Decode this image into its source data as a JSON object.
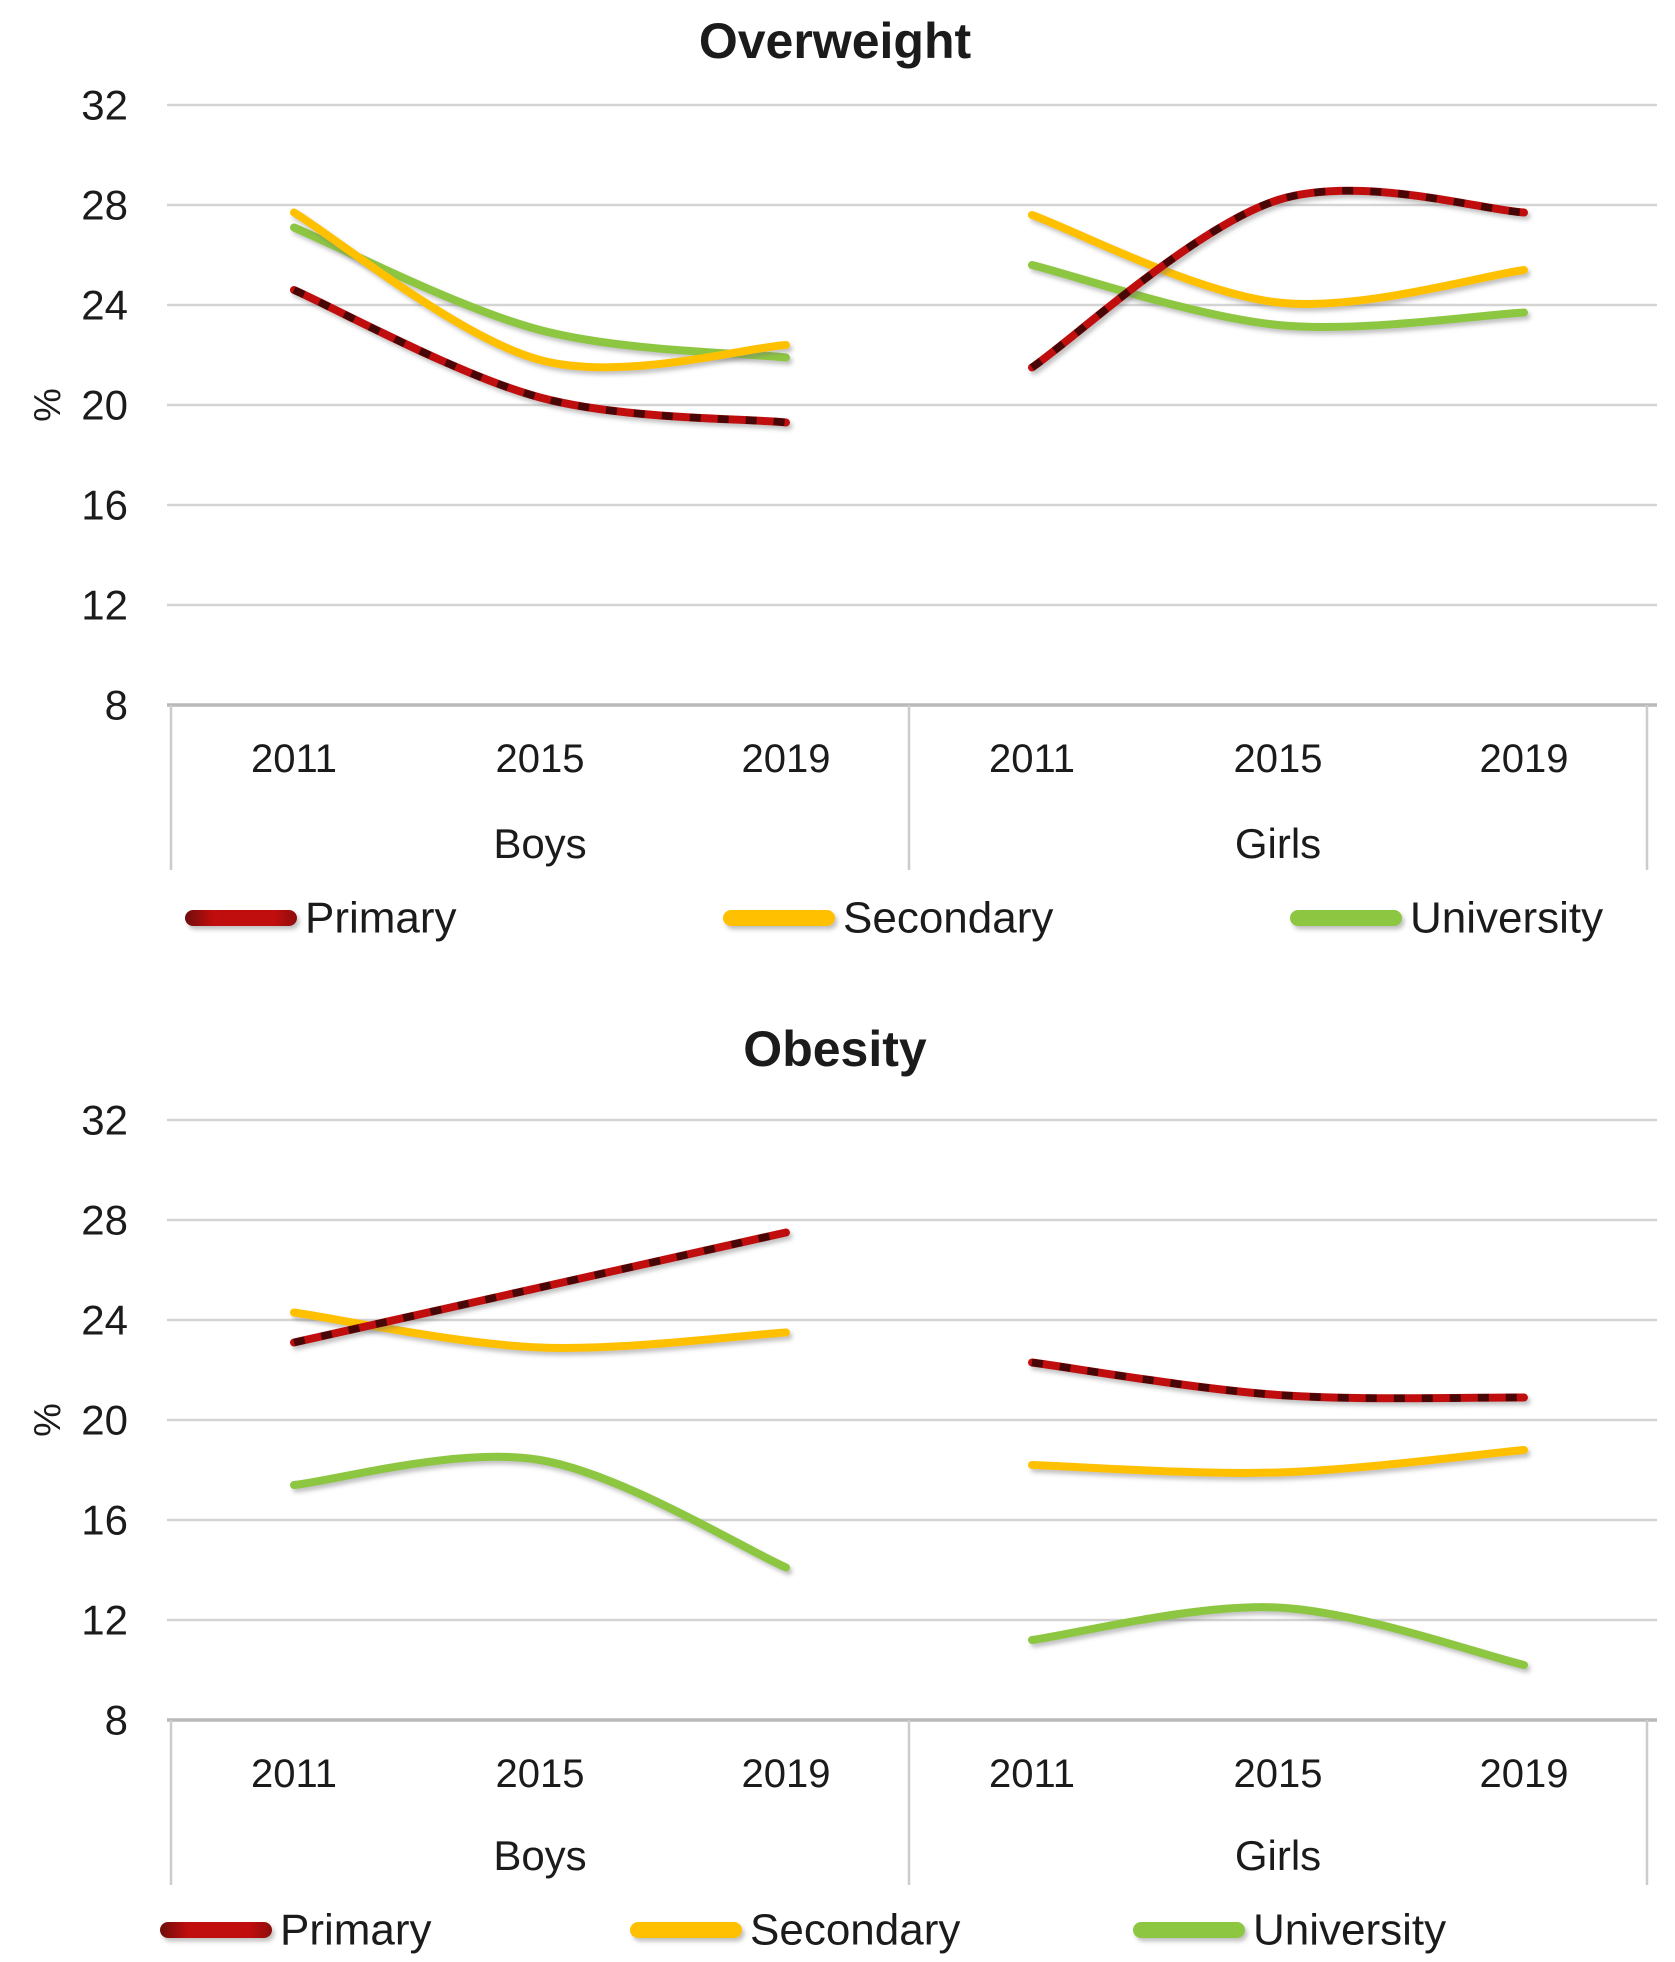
{
  "figure": {
    "description": "Two smoothed line charts comparing Overweight and Obesity prevalence (%) for Boys and Girls in 2011, 2015, 2019 by school level",
    "text_color": "#1b1b1b",
    "grid_color": "#d4d4d4",
    "axis_color": "#b9b9b9"
  },
  "chart_data": [
    {
      "type": "line",
      "title": "Overweight",
      "ylabel": "%",
      "ylim": [
        8,
        32
      ],
      "yticks": [
        32,
        28,
        24,
        20,
        16,
        12,
        8
      ],
      "x": [
        "2011",
        "2015",
        "2019"
      ],
      "grid": true,
      "legend_position": "bottom",
      "legend": [
        {
          "label": "Primary",
          "color": "#c01110"
        },
        {
          "label": "Secondary",
          "color": "#ffc000"
        },
        {
          "label": "University",
          "color": "#8dc63f"
        }
      ],
      "panels": [
        {
          "name": "Boys",
          "series": [
            {
              "name": "Primary",
              "values": [
                24.6,
                20.3,
                19.3
              ]
            },
            {
              "name": "Secondary",
              "values": [
                27.7,
                21.8,
                22.4
              ]
            },
            {
              "name": "University",
              "values": [
                27.1,
                23.0,
                21.9
              ]
            }
          ]
        },
        {
          "name": "Girls",
          "series": [
            {
              "name": "Primary",
              "values": [
                21.5,
                28.2,
                27.7
              ]
            },
            {
              "name": "Secondary",
              "values": [
                27.6,
                24.1,
                25.4
              ]
            },
            {
              "name": "University",
              "values": [
                25.6,
                23.2,
                23.7
              ]
            }
          ]
        }
      ]
    },
    {
      "type": "line",
      "title": "Obesity",
      "ylabel": "%",
      "ylim": [
        8,
        32
      ],
      "yticks": [
        32,
        28,
        24,
        20,
        16,
        12,
        8
      ],
      "x": [
        "2011",
        "2015",
        "2019"
      ],
      "grid": true,
      "legend_position": "bottom",
      "legend": [
        {
          "label": "Primary",
          "color": "#c01110"
        },
        {
          "label": "Secondary",
          "color": "#ffc000"
        },
        {
          "label": "University",
          "color": "#8dc63f"
        }
      ],
      "panels": [
        {
          "name": "Boys",
          "series": [
            {
              "name": "Primary",
              "values": [
                23.1,
                25.3,
                27.5
              ]
            },
            {
              "name": "Secondary",
              "values": [
                24.3,
                22.9,
                23.5
              ]
            },
            {
              "name": "University",
              "values": [
                17.4,
                18.4,
                14.1
              ]
            }
          ]
        },
        {
          "name": "Girls",
          "series": [
            {
              "name": "Primary",
              "values": [
                22.3,
                21.0,
                20.9
              ]
            },
            {
              "name": "Secondary",
              "values": [
                18.2,
                17.9,
                18.8
              ]
            },
            {
              "name": "University",
              "values": [
                11.2,
                12.5,
                10.2
              ]
            }
          ]
        }
      ]
    }
  ]
}
